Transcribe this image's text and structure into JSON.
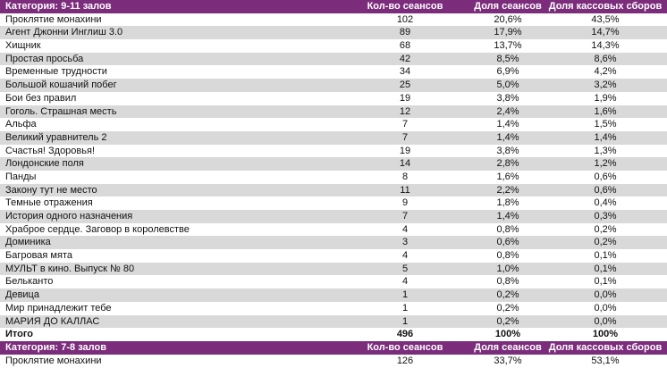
{
  "sections": [
    {
      "header": {
        "category": "Категория: 9-11 залов",
        "col_sessions": "Кол-во сеансов",
        "col_share_sessions": "Доля сеансов",
        "col_share_box": "Доля кассовых сборов"
      },
      "rows": [
        [
          "Проклятие монахини",
          "102",
          "20,6%",
          "43,5%"
        ],
        [
          "Агент Джонни Инглиш 3.0",
          "89",
          "17,9%",
          "14,7%"
        ],
        [
          "Хищник",
          "68",
          "13,7%",
          "14,3%"
        ],
        [
          "Простая просьба",
          "42",
          "8,5%",
          "8,6%"
        ],
        [
          "Временные трудности",
          "34",
          "6,9%",
          "4,2%"
        ],
        [
          "Большой кошачий побег",
          "25",
          "5,0%",
          "3,2%"
        ],
        [
          "Бои без правил",
          "19",
          "3,8%",
          "1,9%"
        ],
        [
          "Гоголь. Страшная месть",
          "12",
          "2,4%",
          "1,6%"
        ],
        [
          "Альфа",
          "7",
          "1,4%",
          "1,5%"
        ],
        [
          "Великий уравнитель 2",
          "7",
          "1,4%",
          "1,4%"
        ],
        [
          "Счастья! Здоровья!",
          "19",
          "3,8%",
          "1,3%"
        ],
        [
          "Лондонские поля",
          "14",
          "2,8%",
          "1,2%"
        ],
        [
          "Панды",
          "8",
          "1,6%",
          "0,6%"
        ],
        [
          "Закону тут не место",
          "11",
          "2,2%",
          "0,6%"
        ],
        [
          "Темные отражения",
          "9",
          "1,8%",
          "0,4%"
        ],
        [
          "История одного назначения",
          "7",
          "1,4%",
          "0,3%"
        ],
        [
          "Храброе сердце. Заговор в королевстве",
          "4",
          "0,8%",
          "0,2%"
        ],
        [
          "Доминика",
          "3",
          "0,6%",
          "0,2%"
        ],
        [
          "Багровая мята",
          "4",
          "0,8%",
          "0,1%"
        ],
        [
          "МУЛЬТ в кино. Выпуск № 80",
          "5",
          "1,0%",
          "0,1%"
        ],
        [
          "Бельканто",
          "4",
          "0,8%",
          "0,1%"
        ],
        [
          "Девица",
          "1",
          "0,2%",
          "0,0%"
        ],
        [
          "Мир принадлежит тебе",
          "1",
          "0,2%",
          "0,0%"
        ],
        [
          "МАРИЯ ДО КАЛЛАС",
          "1",
          "0,2%",
          "0,0%"
        ]
      ],
      "total": [
        "Итого",
        "496",
        "100%",
        "100%"
      ]
    },
    {
      "header": {
        "category": "Категория: 7-8 залов",
        "col_sessions": "Кол-во сеансов",
        "col_share_sessions": "Доля сеансов",
        "col_share_box": "Доля кассовых сборов"
      },
      "rows": [
        [
          "Проклятие монахини",
          "126",
          "33,7%",
          "53,1%"
        ]
      ]
    }
  ]
}
